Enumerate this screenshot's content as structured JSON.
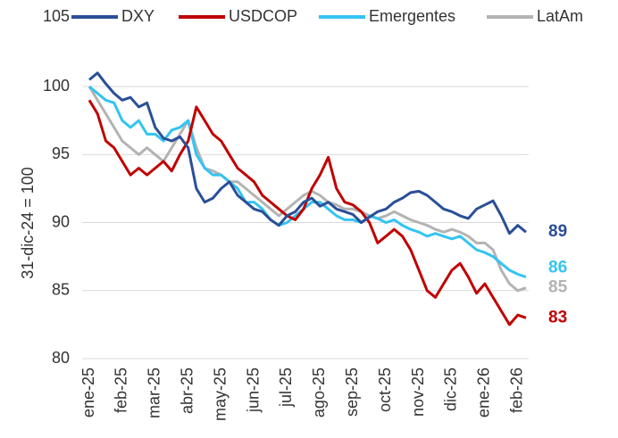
{
  "chart_data": {
    "type": "line",
    "y_label": "31-dic-24 = 100",
    "categories": [
      "ene-25",
      null,
      null,
      null,
      "feb-25",
      null,
      null,
      null,
      "mar-25",
      null,
      null,
      null,
      "abr-25",
      null,
      null,
      null,
      "may-25",
      null,
      null,
      null,
      "jun-25",
      null,
      null,
      null,
      "jul-25",
      null,
      null,
      null,
      "ago-25",
      null,
      null,
      null,
      "sep-25",
      null,
      null,
      null,
      "oct-25",
      null,
      null,
      null,
      "nov-25",
      null,
      null,
      null,
      "dic-25",
      null,
      null,
      null,
      "ene-26",
      null,
      null,
      null,
      "feb-26",
      null
    ],
    "series": [
      {
        "name": "DXY",
        "color": "#2b4f97",
        "last_label": "89",
        "values": [
          100.5,
          101.0,
          100.2,
          99.5,
          99.0,
          99.2,
          98.5,
          98.8,
          97.0,
          96.2,
          96.0,
          96.3,
          95.5,
          92.5,
          91.5,
          91.8,
          92.5,
          93.0,
          92.0,
          91.5,
          91.0,
          90.8,
          90.2,
          89.8,
          90.5,
          90.8,
          91.5,
          91.8,
          91.2,
          91.5,
          91.0,
          90.8,
          90.6,
          90.0,
          90.4,
          90.8,
          91.0,
          91.5,
          91.8,
          92.2,
          92.3,
          92.0,
          91.5,
          91.0,
          90.8,
          90.5,
          90.3,
          91.0,
          91.3,
          91.6,
          90.5,
          89.2,
          89.8,
          89.3
        ]
      },
      {
        "name": "USDCOP",
        "color": "#c00000",
        "last_label": "83",
        "values": [
          99.0,
          98.0,
          96.0,
          95.5,
          94.5,
          93.5,
          94.0,
          93.5,
          94.0,
          94.5,
          93.8,
          95.0,
          96.0,
          98.5,
          97.5,
          96.5,
          96.0,
          95.0,
          94.0,
          93.5,
          93.0,
          92.0,
          91.5,
          91.0,
          90.5,
          90.2,
          91.0,
          92.5,
          93.5,
          94.8,
          92.5,
          91.5,
          91.3,
          90.8,
          90.0,
          88.5,
          89.0,
          89.5,
          89.0,
          88.0,
          86.5,
          85.0,
          84.5,
          85.5,
          86.5,
          87.0,
          86.0,
          84.8,
          85.5,
          84.5,
          83.5,
          82.5,
          83.2,
          83.0
        ]
      },
      {
        "name": "Emergentes",
        "color": "#33c4f2",
        "last_label": "86",
        "values": [
          100.0,
          99.5,
          99.0,
          98.8,
          97.5,
          97.0,
          97.5,
          96.5,
          96.5,
          96.0,
          96.8,
          97.0,
          97.5,
          95.0,
          94.0,
          93.5,
          93.5,
          93.0,
          92.5,
          91.5,
          91.5,
          91.0,
          90.2,
          89.8,
          90.0,
          90.5,
          91.0,
          91.5,
          91.5,
          91.0,
          90.5,
          90.2,
          90.2,
          90.0,
          90.5,
          90.3,
          90.0,
          90.2,
          89.8,
          89.5,
          89.3,
          89.0,
          89.2,
          89.0,
          88.8,
          89.0,
          88.5,
          88.0,
          87.8,
          87.5,
          87.0,
          86.5,
          86.2,
          86.0
        ]
      },
      {
        "name": "LatAm",
        "color": "#b3b3b3",
        "last_label": "85",
        "values": [
          100.0,
          99.0,
          98.0,
          97.0,
          96.0,
          95.5,
          95.0,
          95.5,
          95.0,
          94.5,
          95.5,
          96.5,
          97.5,
          95.5,
          94.0,
          93.8,
          93.5,
          93.0,
          93.0,
          92.5,
          92.0,
          91.5,
          91.0,
          90.5,
          91.0,
          91.5,
          92.0,
          92.3,
          92.0,
          91.5,
          91.3,
          91.0,
          91.0,
          90.8,
          90.5,
          90.3,
          90.5,
          90.8,
          90.5,
          90.2,
          90.0,
          89.8,
          89.5,
          89.3,
          89.5,
          89.3,
          89.0,
          88.5,
          88.5,
          88.0,
          86.5,
          85.5,
          85.0,
          85.2
        ]
      }
    ],
    "ylim": [
      80,
      105
    ],
    "yticks": [
      80,
      85,
      90,
      95,
      100,
      105
    ],
    "grid": true,
    "legend": "top"
  }
}
